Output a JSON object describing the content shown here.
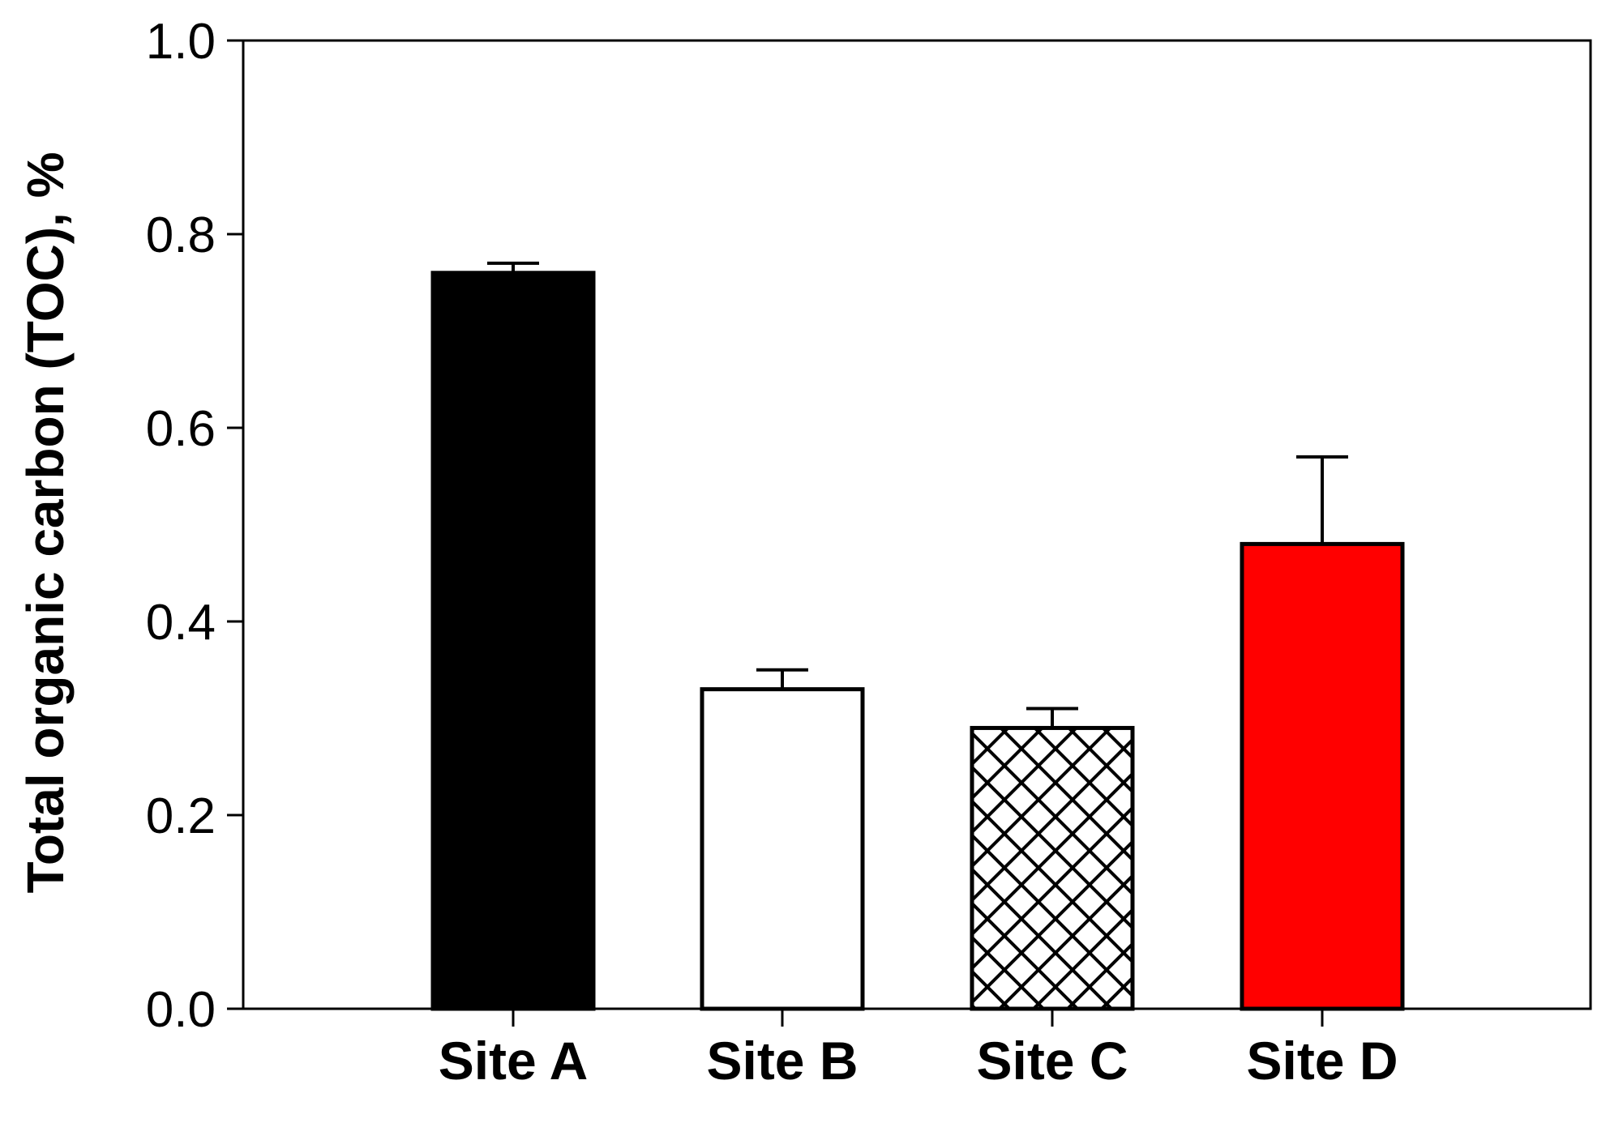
{
  "chart_data": {
    "type": "bar",
    "title": "",
    "xlabel": "",
    "ylabel": "Total organic carbon (TOC), %",
    "ylim": [
      0,
      1.0
    ],
    "yticks": [
      "0.0",
      "0.2",
      "0.4",
      "0.6",
      "0.8",
      "1.0"
    ],
    "categories": [
      "Site A",
      "Site B",
      "Site C",
      "Site D"
    ],
    "values": [
      0.76,
      0.33,
      0.29,
      0.48
    ],
    "errors": [
      0.01,
      0.02,
      0.02,
      0.09
    ],
    "fills": [
      "solid-black",
      "white",
      "crosshatch",
      "solid-red"
    ],
    "colors": {
      "site_a": "#000000",
      "site_b": "#ffffff",
      "site_c": "#ffffff",
      "site_d": "#ff0000"
    },
    "grid": false,
    "legend": "none"
  }
}
